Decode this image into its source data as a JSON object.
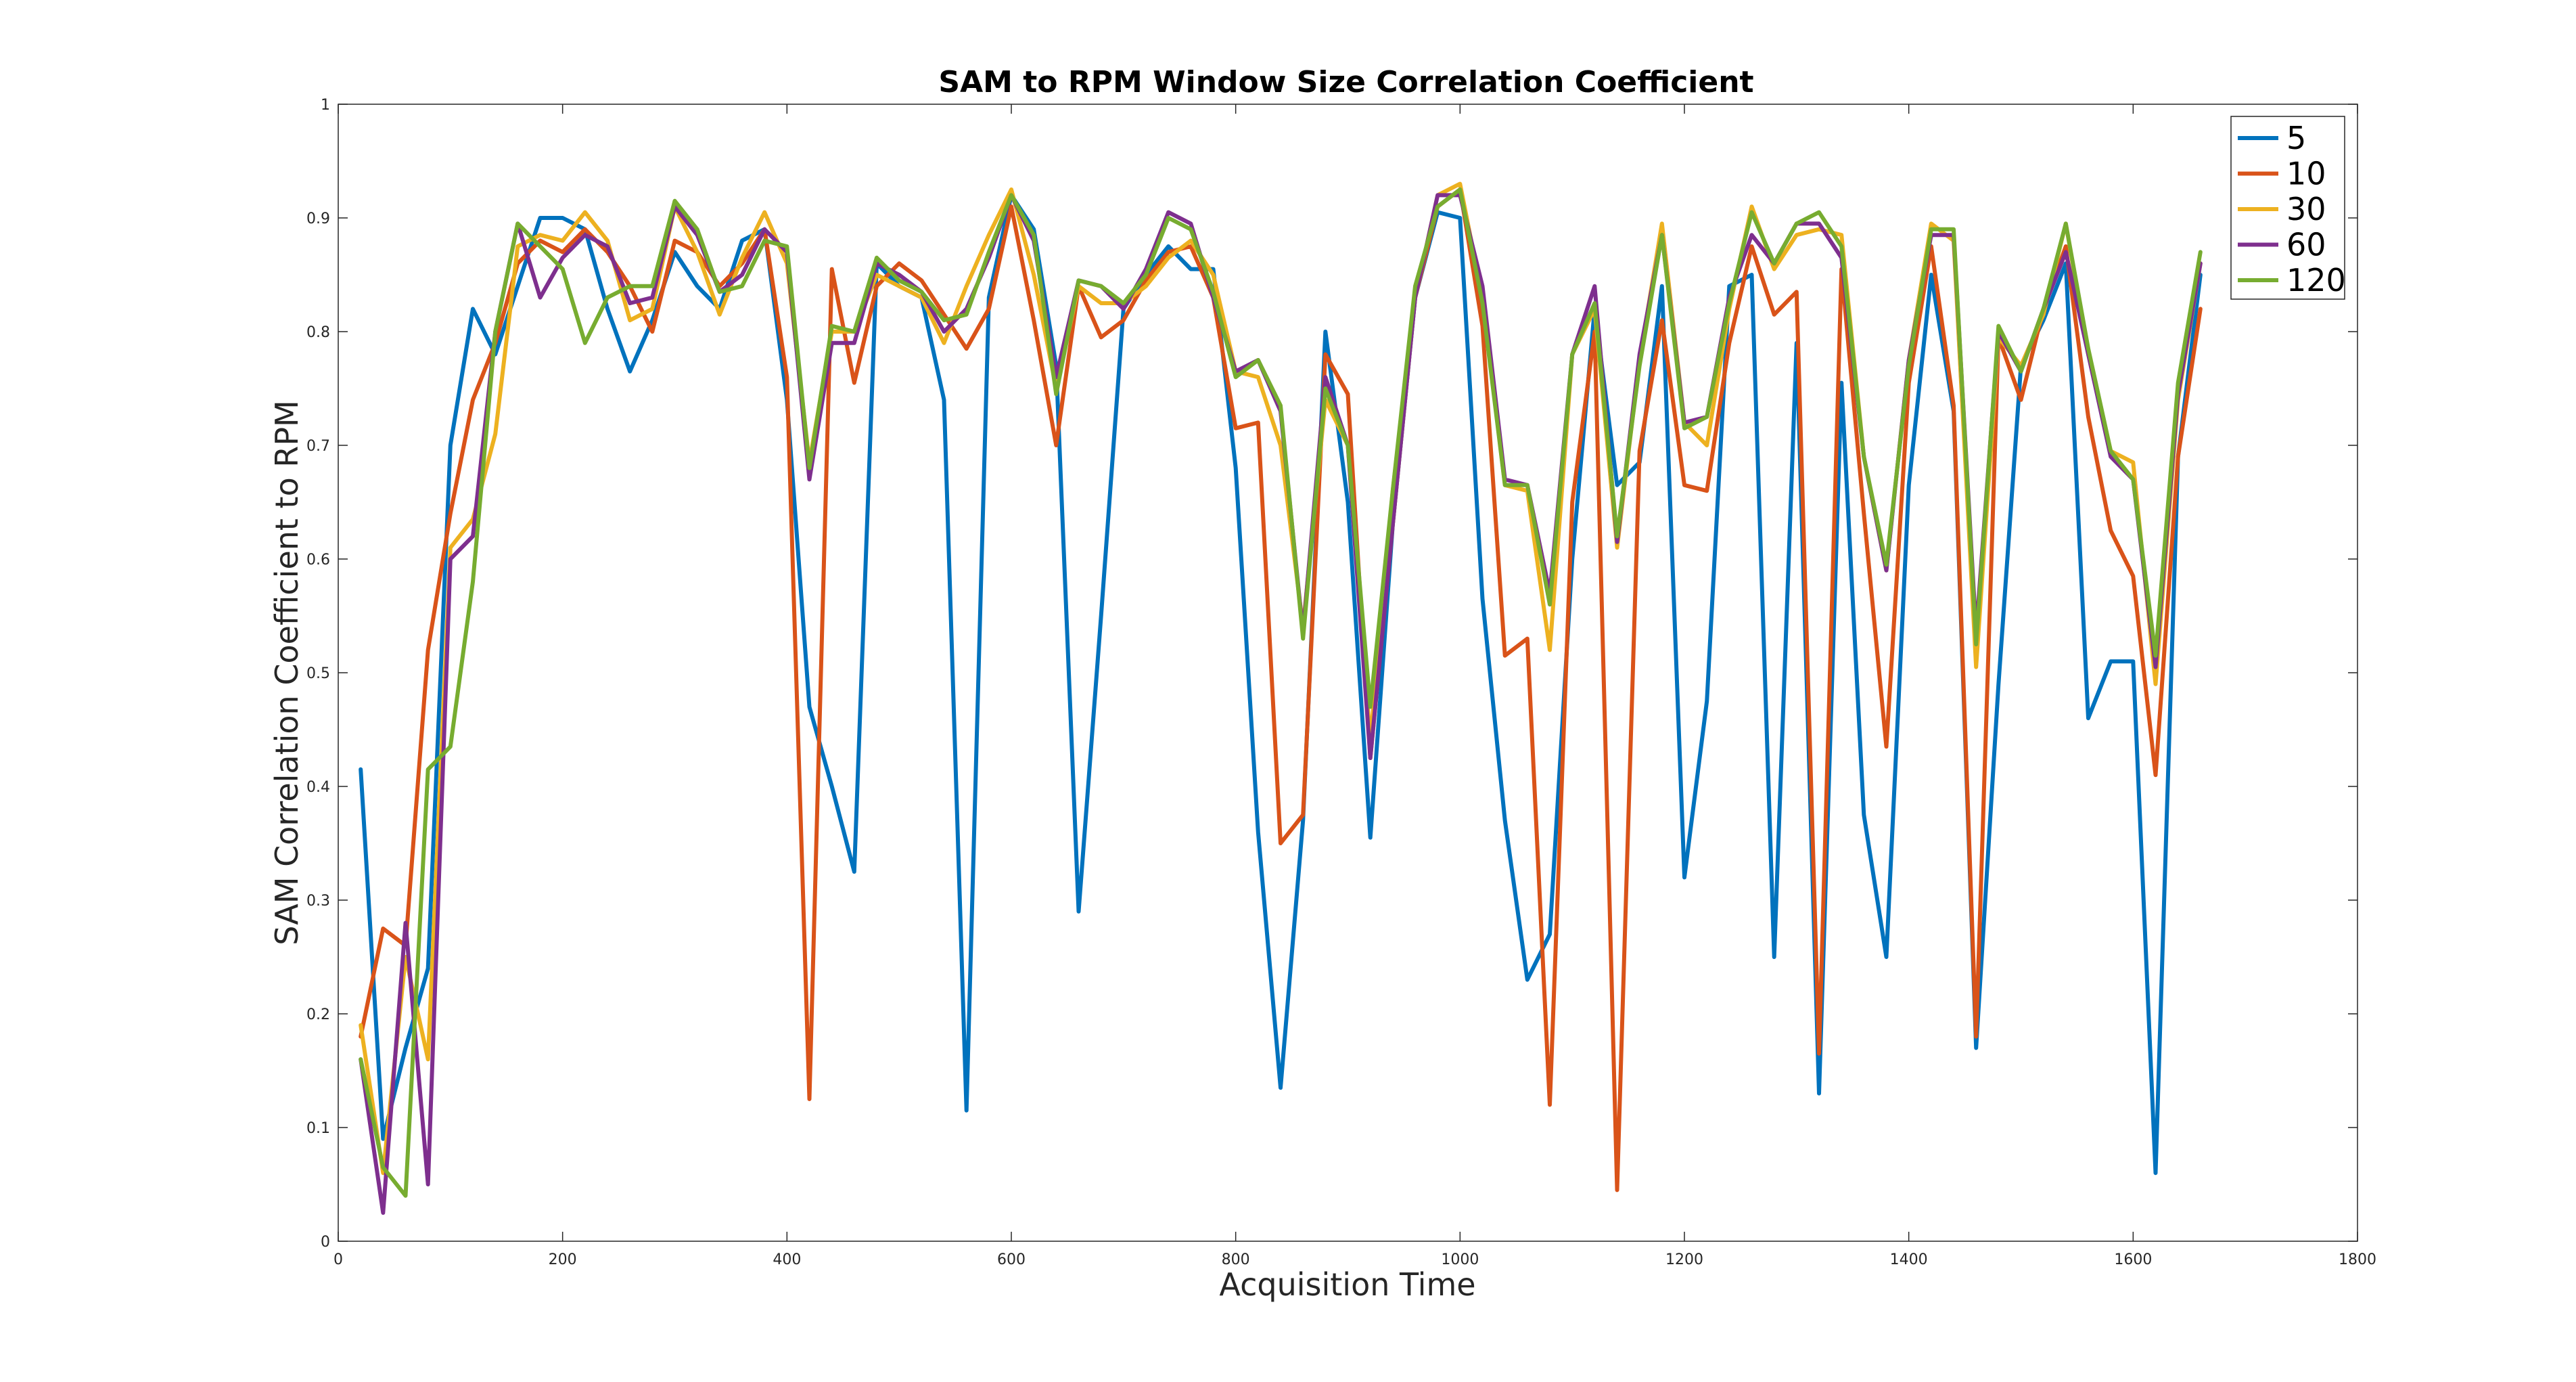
{
  "chart_data": {
    "type": "line",
    "title": "SAM to RPM Window Size Correlation Coefficient",
    "xlabel": "Acquisition Time",
    "ylabel": "SAM Correlation Coefficient to RPM",
    "xlim": [
      0,
      1800
    ],
    "ylim": [
      0,
      1
    ],
    "xticks": [
      0,
      200,
      400,
      600,
      800,
      1000,
      1200,
      1400,
      1600,
      1800
    ],
    "yticks": [
      0,
      0.1,
      0.2,
      0.3,
      0.4,
      0.5,
      0.6,
      0.7,
      0.8,
      0.9,
      1
    ],
    "grid": false,
    "legend_position": "top-right",
    "x": [
      20,
      40,
      60,
      80,
      100,
      120,
      140,
      160,
      180,
      200,
      220,
      240,
      260,
      280,
      300,
      320,
      340,
      360,
      380,
      400,
      420,
      440,
      460,
      480,
      500,
      520,
      540,
      560,
      580,
      600,
      620,
      640,
      660,
      680,
      700,
      720,
      740,
      760,
      780,
      800,
      820,
      840,
      860,
      880,
      900,
      920,
      940,
      960,
      980,
      1000,
      1020,
      1040,
      1060,
      1080,
      1100,
      1120,
      1140,
      1160,
      1180,
      1200,
      1220,
      1240,
      1260,
      1280,
      1300,
      1320,
      1340,
      1360,
      1380,
      1400,
      1420,
      1440,
      1460,
      1480,
      1500,
      1520,
      1540,
      1560,
      1580,
      1600,
      1620,
      1640,
      1660
    ],
    "series": [
      {
        "name": "5",
        "color": "#0072BD",
        "values": [
          0.415,
          0.09,
          0.17,
          0.24,
          0.7,
          0.82,
          0.78,
          0.84,
          0.9,
          0.9,
          0.89,
          0.82,
          0.765,
          0.81,
          0.87,
          0.84,
          0.82,
          0.88,
          0.89,
          0.74,
          0.47,
          0.4,
          0.325,
          0.86,
          0.84,
          0.83,
          0.74,
          0.115,
          0.83,
          0.92,
          0.89,
          0.77,
          0.29,
          0.55,
          0.82,
          0.85,
          0.875,
          0.855,
          0.855,
          0.68,
          0.36,
          0.135,
          0.37,
          0.8,
          0.65,
          0.355,
          0.63,
          0.83,
          0.905,
          0.9,
          0.565,
          0.37,
          0.23,
          0.27,
          0.6,
          0.82,
          0.665,
          0.685,
          0.84,
          0.32,
          0.475,
          0.84,
          0.85,
          0.25,
          0.79,
          0.13,
          0.755,
          0.375,
          0.25,
          0.665,
          0.85,
          0.73,
          0.17,
          0.49,
          0.77,
          0.81,
          0.86,
          0.46,
          0.51,
          0.51,
          0.06,
          0.69,
          0.85
        ]
      },
      {
        "name": "10",
        "color": "#D95319",
        "values": [
          0.18,
          0.275,
          0.26,
          0.52,
          0.64,
          0.74,
          0.79,
          0.86,
          0.88,
          0.87,
          0.89,
          0.87,
          0.84,
          0.8,
          0.88,
          0.87,
          0.84,
          0.86,
          0.89,
          0.76,
          0.125,
          0.855,
          0.755,
          0.84,
          0.86,
          0.845,
          0.815,
          0.785,
          0.82,
          0.91,
          0.81,
          0.7,
          0.84,
          0.795,
          0.81,
          0.845,
          0.87,
          0.875,
          0.83,
          0.715,
          0.72,
          0.35,
          0.375,
          0.78,
          0.745,
          0.425,
          0.63,
          0.83,
          0.91,
          0.925,
          0.805,
          0.515,
          0.53,
          0.12,
          0.65,
          0.8,
          0.045,
          0.695,
          0.81,
          0.665,
          0.66,
          0.79,
          0.875,
          0.815,
          0.835,
          0.165,
          0.855,
          0.64,
          0.435,
          0.755,
          0.875,
          0.735,
          0.18,
          0.795,
          0.74,
          0.82,
          0.875,
          0.725,
          0.625,
          0.585,
          0.41,
          0.69,
          0.82
        ]
      },
      {
        "name": "30",
        "color": "#EDB120",
        "values": [
          0.19,
          0.06,
          0.25,
          0.16,
          0.61,
          0.635,
          0.71,
          0.875,
          0.885,
          0.88,
          0.905,
          0.88,
          0.81,
          0.82,
          0.91,
          0.87,
          0.815,
          0.865,
          0.905,
          0.86,
          0.685,
          0.8,
          0.8,
          0.85,
          0.84,
          0.83,
          0.79,
          0.84,
          0.885,
          0.925,
          0.85,
          0.75,
          0.84,
          0.825,
          0.825,
          0.84,
          0.865,
          0.88,
          0.85,
          0.765,
          0.76,
          0.7,
          0.54,
          0.74,
          0.7,
          0.44,
          0.66,
          0.83,
          0.92,
          0.93,
          0.83,
          0.665,
          0.66,
          0.52,
          0.78,
          0.82,
          0.61,
          0.775,
          0.895,
          0.72,
          0.7,
          0.82,
          0.91,
          0.855,
          0.885,
          0.89,
          0.885,
          0.69,
          0.59,
          0.775,
          0.895,
          0.88,
          0.505,
          0.795,
          0.77,
          0.815,
          0.895,
          0.78,
          0.695,
          0.685,
          0.49,
          0.74,
          0.86
        ]
      },
      {
        "name": "60",
        "color": "#7E2F8E",
        "values": [
          0.16,
          0.025,
          0.28,
          0.05,
          0.6,
          0.62,
          0.8,
          0.895,
          0.83,
          0.865,
          0.885,
          0.875,
          0.825,
          0.83,
          0.91,
          0.885,
          0.835,
          0.85,
          0.89,
          0.87,
          0.67,
          0.79,
          0.79,
          0.86,
          0.85,
          0.835,
          0.8,
          0.82,
          0.865,
          0.92,
          0.88,
          0.76,
          0.845,
          0.84,
          0.82,
          0.855,
          0.905,
          0.895,
          0.83,
          0.765,
          0.775,
          0.73,
          0.535,
          0.76,
          0.7,
          0.425,
          0.63,
          0.83,
          0.92,
          0.92,
          0.84,
          0.67,
          0.665,
          0.57,
          0.78,
          0.84,
          0.615,
          0.78,
          0.885,
          0.72,
          0.725,
          0.83,
          0.885,
          0.86,
          0.895,
          0.895,
          0.865,
          0.69,
          0.59,
          0.775,
          0.885,
          0.885,
          0.535,
          0.8,
          0.765,
          0.82,
          0.87,
          0.78,
          0.69,
          0.67,
          0.505,
          0.745,
          0.86
        ]
      },
      {
        "name": "120",
        "color": "#77AC30",
        "values": [
          0.16,
          0.065,
          0.04,
          0.415,
          0.435,
          0.58,
          0.8,
          0.895,
          0.875,
          0.855,
          0.79,
          0.83,
          0.84,
          0.84,
          0.915,
          0.89,
          0.835,
          0.84,
          0.88,
          0.875,
          0.68,
          0.805,
          0.8,
          0.865,
          0.845,
          0.835,
          0.81,
          0.815,
          0.87,
          0.92,
          0.885,
          0.745,
          0.845,
          0.84,
          0.825,
          0.85,
          0.9,
          0.89,
          0.835,
          0.76,
          0.775,
          0.735,
          0.53,
          0.75,
          0.7,
          0.47,
          0.66,
          0.84,
          0.91,
          0.925,
          0.825,
          0.665,
          0.665,
          0.56,
          0.78,
          0.825,
          0.62,
          0.77,
          0.885,
          0.715,
          0.725,
          0.825,
          0.905,
          0.86,
          0.895,
          0.905,
          0.875,
          0.69,
          0.595,
          0.77,
          0.89,
          0.89,
          0.525,
          0.805,
          0.765,
          0.82,
          0.895,
          0.785,
          0.695,
          0.67,
          0.515,
          0.755,
          0.87
        ]
      }
    ]
  }
}
